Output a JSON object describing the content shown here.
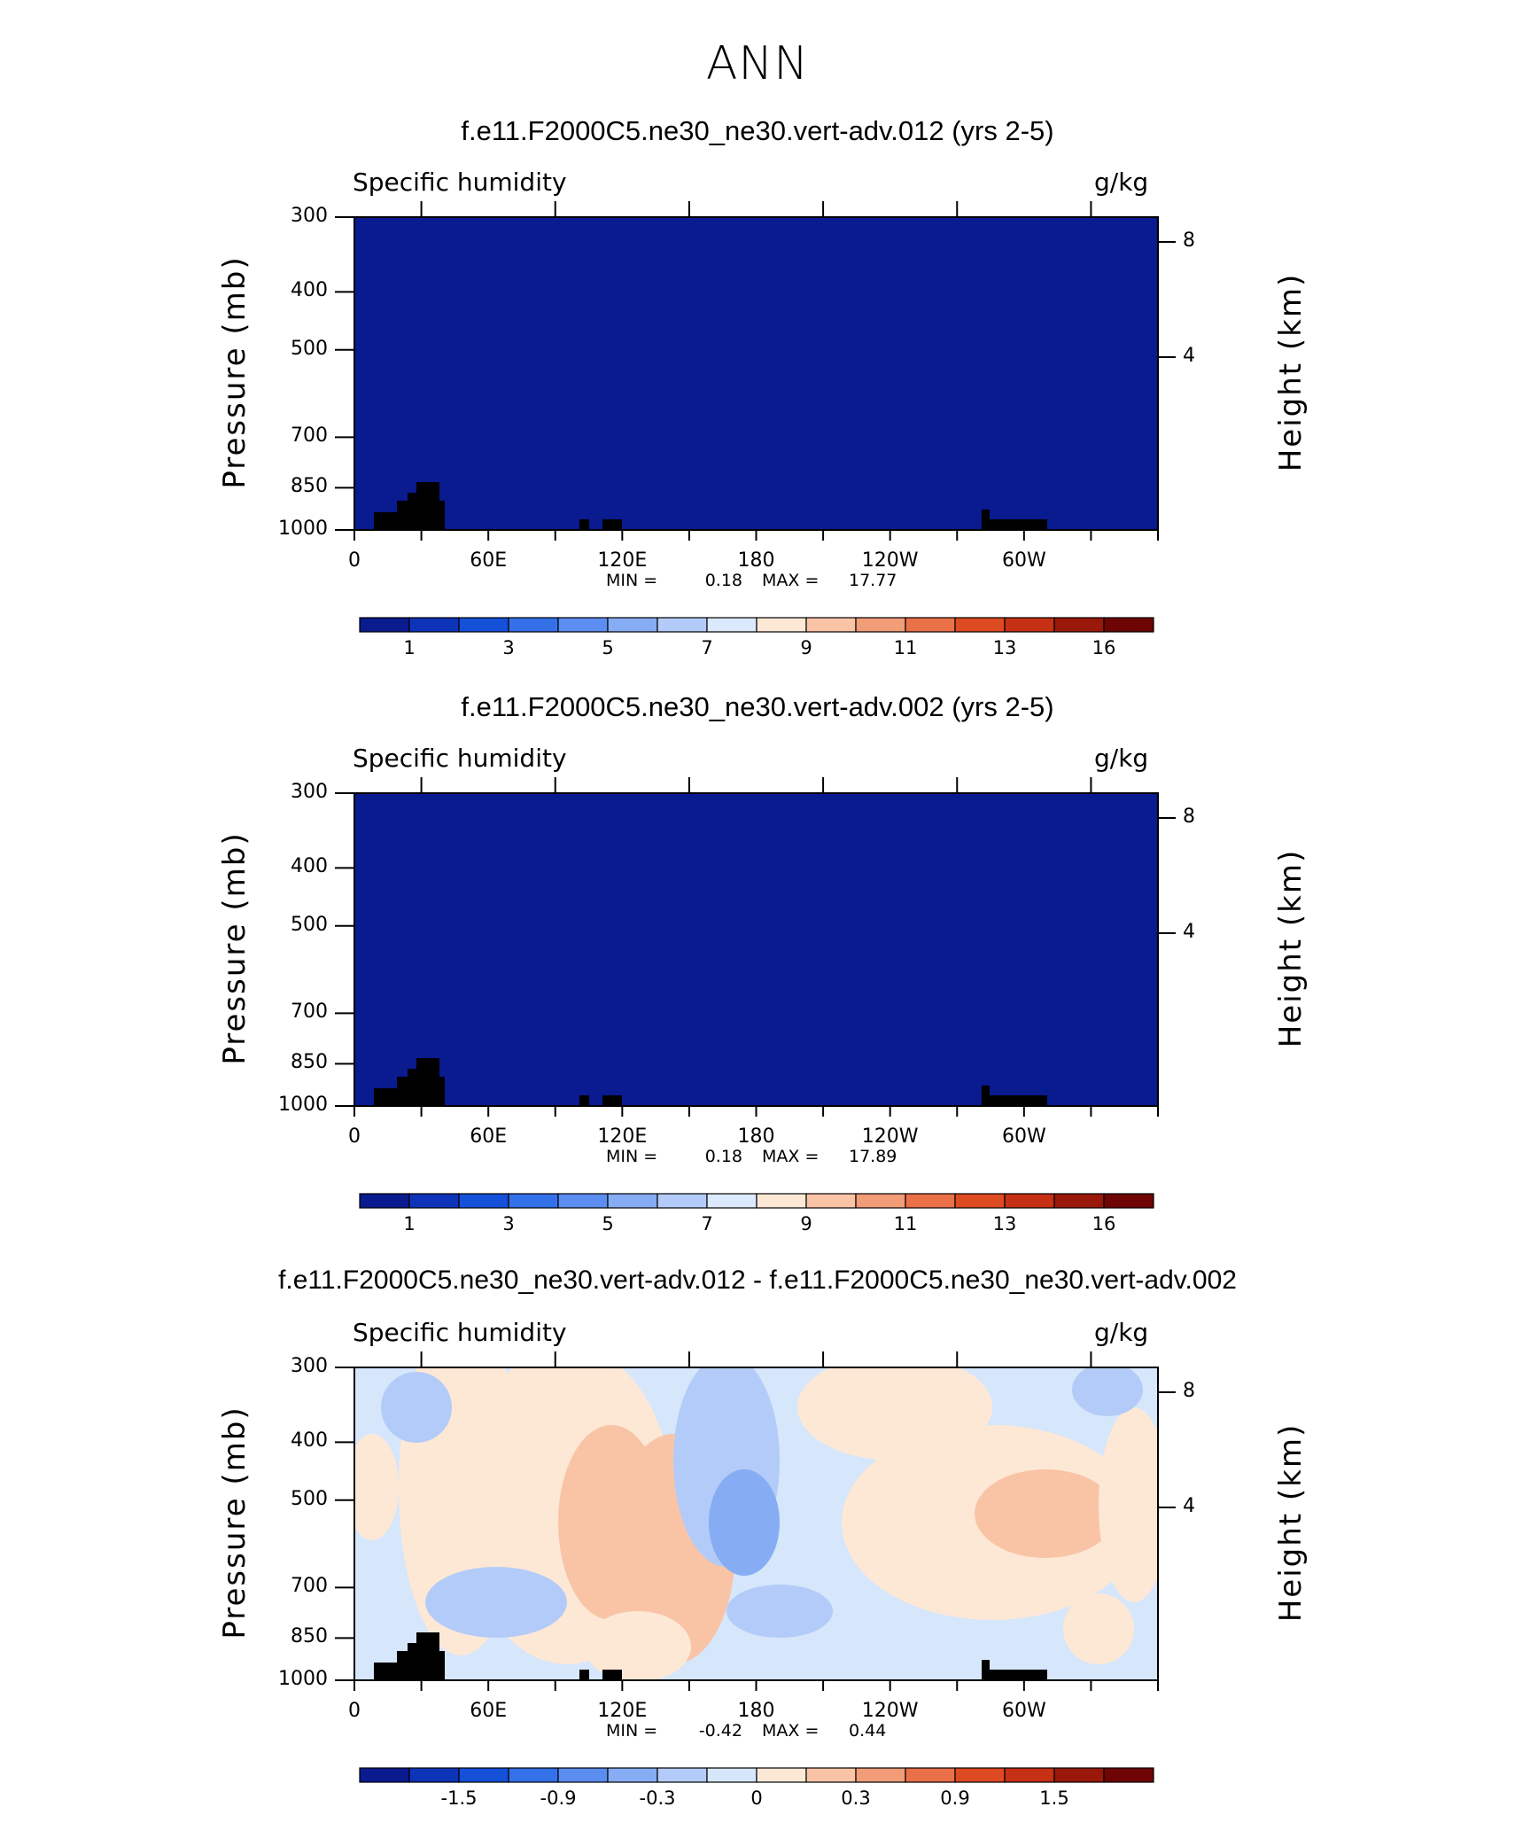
{
  "figure": {
    "title": "ANN"
  },
  "chart_data": [
    {
      "type": "heatmap",
      "title": "f.e11.F2000C5.ne30_ne30.vert-adv.012 (yrs 2-5)",
      "left_label": "Specific humidity",
      "right_label": "g/kg",
      "ylabel": "Pressure (mb)",
      "ylabel_right": "Height (km)",
      "x_ticks": [
        "0",
        "60E",
        "120E",
        "180",
        "120W",
        "60W"
      ],
      "y_ticks": [
        "300",
        "400",
        "500",
        "700",
        "850",
        "1000"
      ],
      "y_ticks_right": [
        "8",
        "4"
      ],
      "ylim": [
        1000,
        300
      ],
      "min_label": "MIN =",
      "min_value": "0.18",
      "max_label": "MAX =",
      "max_value": "17.77",
      "colorbar_ticks": [
        "1",
        "3",
        "5",
        "7",
        "9",
        "11",
        "13",
        "16"
      ],
      "colorbar_colors": [
        "#0a1a8f",
        "#0d33b8",
        "#1450d8",
        "#3470e8",
        "#5b8ef0",
        "#86acf4",
        "#b3cbf8",
        "#dce8fb",
        "#fde8d6",
        "#f9c4a6",
        "#f29c78",
        "#ea7048",
        "#de4a22",
        "#c63014",
        "#9a180a",
        "#6e0404"
      ]
    },
    {
      "type": "heatmap",
      "title": "f.e11.F2000C5.ne30_ne30.vert-adv.002 (yrs 2-5)",
      "left_label": "Specific humidity",
      "right_label": "g/kg",
      "ylabel": "Pressure (mb)",
      "ylabel_right": "Height (km)",
      "x_ticks": [
        "0",
        "60E",
        "120E",
        "180",
        "120W",
        "60W"
      ],
      "y_ticks": [
        "300",
        "400",
        "500",
        "700",
        "850",
        "1000"
      ],
      "y_ticks_right": [
        "8",
        "4"
      ],
      "ylim": [
        1000,
        300
      ],
      "min_label": "MIN =",
      "min_value": "0.18",
      "max_label": "MAX =",
      "max_value": "17.89",
      "colorbar_ticks": [
        "1",
        "3",
        "5",
        "7",
        "9",
        "11",
        "13",
        "16"
      ],
      "colorbar_colors": [
        "#0a1a8f",
        "#0d33b8",
        "#1450d8",
        "#3470e8",
        "#5b8ef0",
        "#86acf4",
        "#b3cbf8",
        "#dce8fb",
        "#fde8d6",
        "#f9c4a6",
        "#f29c78",
        "#ea7048",
        "#de4a22",
        "#c63014",
        "#9a180a",
        "#6e0404"
      ]
    },
    {
      "type": "heatmap",
      "title": "f.e11.F2000C5.ne30_ne30.vert-adv.012 - f.e11.F2000C5.ne30_ne30.vert-adv.002",
      "left_label": "Specific humidity",
      "right_label": "g/kg",
      "ylabel": "Pressure (mb)",
      "ylabel_right": "Height (km)",
      "x_ticks": [
        "0",
        "60E",
        "120E",
        "180",
        "120W",
        "60W"
      ],
      "y_ticks": [
        "300",
        "400",
        "500",
        "700",
        "850",
        "1000"
      ],
      "y_ticks_right": [
        "8",
        "4"
      ],
      "ylim": [
        1000,
        300
      ],
      "min_label": "MIN =",
      "min_value": "-0.42",
      "max_label": "MAX =",
      "max_value": "0.44",
      "colorbar_ticks": [
        "-1.5",
        "-0.9",
        "-0.3",
        "0",
        "0.3",
        "0.9",
        "1.5"
      ],
      "colorbar_colors": [
        "#0a1a8f",
        "#0d33b8",
        "#1450d8",
        "#3470e8",
        "#5b8ef0",
        "#86acf4",
        "#b3cbf8",
        "#d6e6fb",
        "#fde8d6",
        "#f9c4a6",
        "#f29c78",
        "#ea7048",
        "#de4a22",
        "#c63014",
        "#9a180a",
        "#6e0404"
      ]
    }
  ]
}
